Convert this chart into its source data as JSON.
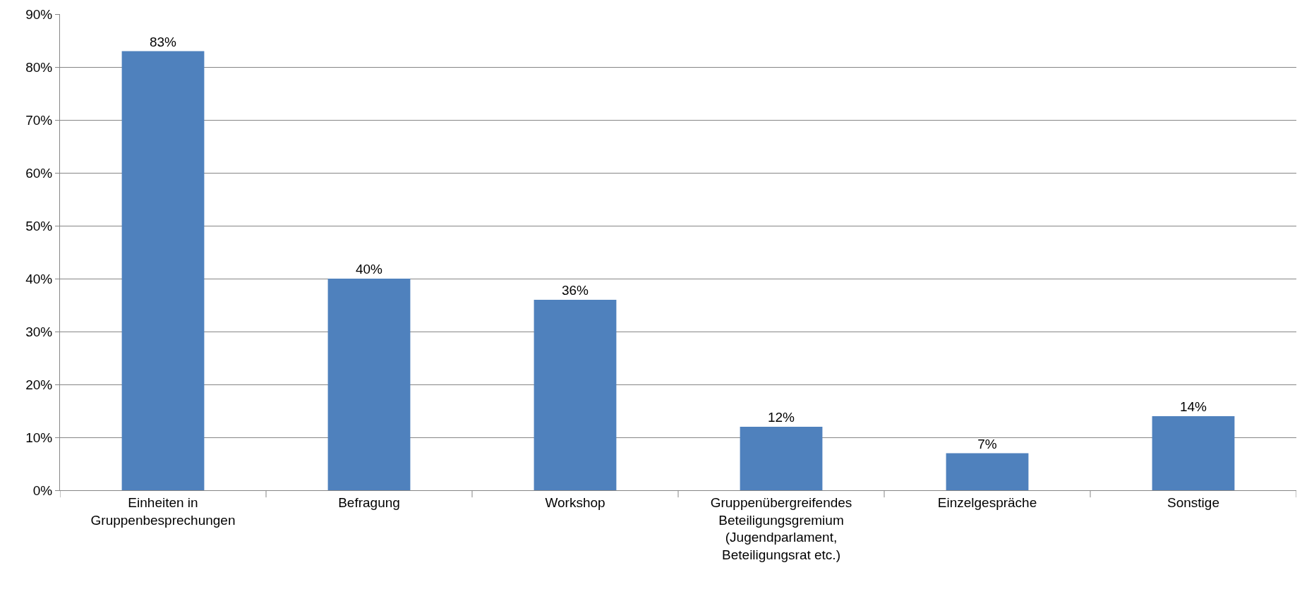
{
  "chart_data": {
    "type": "bar",
    "categories": [
      "Einheiten in Gruppenbesprechungen",
      "Befragung",
      "Workshop",
      "Gruppenübergreifendes Beteiligungsgremium (Jugendparlament, Beteiligungsrat etc.)",
      "Einzelgespräche",
      "Sonstige"
    ],
    "values": [
      83,
      40,
      36,
      12,
      7,
      14
    ],
    "value_labels": [
      "83%",
      "40%",
      "36%",
      "12%",
      "7%",
      "14%"
    ],
    "color": "#4f81bd",
    "ylim": [
      0,
      90
    ],
    "yticks": [
      {
        "value": 0,
        "label": "0%"
      },
      {
        "value": 10,
        "label": "10%"
      },
      {
        "value": 20,
        "label": "20%"
      },
      {
        "value": 30,
        "label": "30%"
      },
      {
        "value": 40,
        "label": "40%"
      },
      {
        "value": 50,
        "label": "50%"
      },
      {
        "value": 60,
        "label": "60%"
      },
      {
        "value": 70,
        "label": "70%"
      },
      {
        "value": 80,
        "label": "80%"
      },
      {
        "value": 90,
        "label": "90%"
      }
    ],
    "grid": "y"
  }
}
